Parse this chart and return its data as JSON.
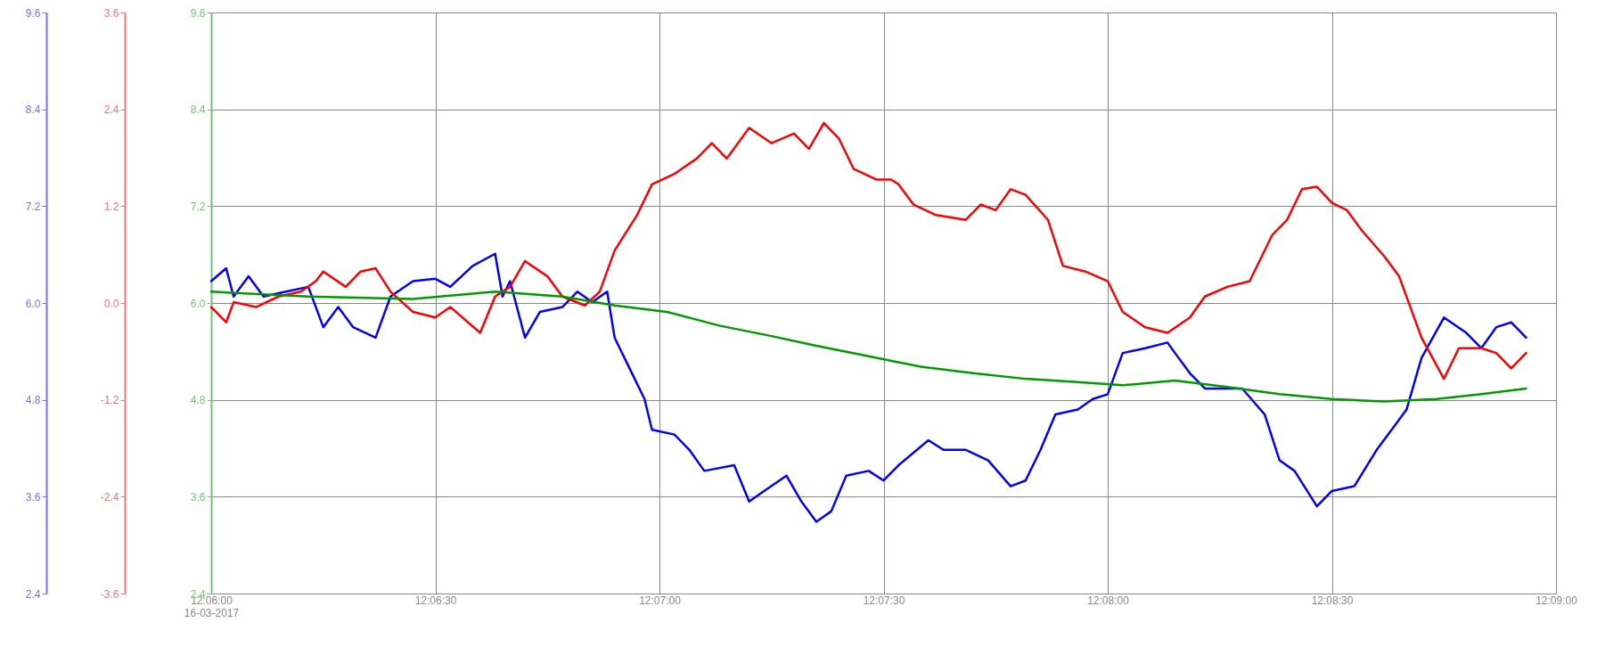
{
  "chart_data": {
    "type": "line",
    "xlim": [
      "2017-03-16T12:06:00",
      "2017-03-16T12:09:00"
    ],
    "xticks": [
      {
        "value": "2017-03-16T12:06:00",
        "label": "12:06:00\n16-03-2017"
      },
      {
        "value": "2017-03-16T12:06:30",
        "label": "12:06:30"
      },
      {
        "value": "2017-03-16T12:07:00",
        "label": "12:07:00"
      },
      {
        "value": "2017-03-16T12:07:30",
        "label": "12:07:30"
      },
      {
        "value": "2017-03-16T12:08:00",
        "label": "12:08:00"
      },
      {
        "value": "2017-03-16T12:08:30",
        "label": "12:08:30"
      },
      {
        "value": "2017-03-16T12:09:00",
        "label": "12:09:00"
      }
    ],
    "ylim": [
      2.4,
      9.6
    ],
    "yticks": [
      2.4,
      3.6,
      4.8,
      {
        "value": 6,
        "label": "6.0"
      },
      7.2,
      8.4,
      9.6
    ],
    "y2lim": [
      -3.6,
      3.6
    ],
    "y2ticks": [
      -3.6,
      -2.4,
      -1.2,
      {
        "value": 0,
        "label": "0.0"
      },
      1.2,
      2.4,
      3.6
    ],
    "y3lim": [
      2.4,
      9.6
    ],
    "y3ticks": [
      2.4,
      3.6,
      4.8,
      {
        "value": 6,
        "label": "6.0"
      },
      7.2,
      8.4,
      9.6
    ],
    "grid": true,
    "line_style": "solid",
    "marker": "none",
    "series": [
      {
        "color": "#0000ff",
        "axis": "y",
        "x": [
          "2017-03-16T12:06:00",
          "2017-03-16T12:06:02",
          "2017-03-16T12:06:03",
          "2017-03-16T12:06:05",
          "2017-03-16T12:06:07",
          "2017-03-16T12:06:10",
          "2017-03-16T12:06:13",
          "2017-03-16T12:06:15",
          "2017-03-16T12:06:17",
          "2017-03-16T12:06:19",
          "2017-03-16T12:06:22",
          "2017-03-16T12:06:24",
          "2017-03-16T12:06:27",
          "2017-03-16T12:06:30",
          "2017-03-16T12:06:32",
          "2017-03-16T12:06:35",
          "2017-03-16T12:06:38",
          "2017-03-16T12:06:39",
          "2017-03-16T12:06:40",
          "2017-03-16T12:06:42",
          "2017-03-16T12:06:44",
          "2017-03-16T12:06:47",
          "2017-03-16T12:06:49",
          "2017-03-16T12:06:51",
          "2017-03-16T12:06:53",
          "2017-03-16T12:06:54",
          "2017-03-16T12:06:56",
          "2017-03-16T12:06:58",
          "2017-03-16T12:06:59",
          "2017-03-16T12:07:02",
          "2017-03-16T12:07:04",
          "2017-03-16T12:07:06",
          "2017-03-16T12:07:10",
          "2017-03-16T12:07:12",
          "2017-03-16T12:07:14",
          "2017-03-16T12:07:17",
          "2017-03-16T12:07:19",
          "2017-03-16T12:07:21",
          "2017-03-16T12:07:23",
          "2017-03-16T12:07:25",
          "2017-03-16T12:07:28",
          "2017-03-16T12:07:30",
          "2017-03-16T12:07:32",
          "2017-03-16T12:07:36",
          "2017-03-16T12:07:38",
          "2017-03-16T12:07:41",
          "2017-03-16T12:07:44",
          "2017-03-16T12:07:47",
          "2017-03-16T12:07:49",
          "2017-03-16T12:07:51",
          "2017-03-16T12:07:53",
          "2017-03-16T12:07:56",
          "2017-03-16T12:07:58",
          "2017-03-16T12:08:00",
          "2017-03-16T12:08:02",
          "2017-03-16T12:08:05",
          "2017-03-16T12:08:08",
          "2017-03-16T12:08:09",
          "2017-03-16T12:08:11",
          "2017-03-16T12:08:13",
          "2017-03-16T12:08:15",
          "2017-03-16T12:08:18",
          "2017-03-16T12:08:21",
          "2017-03-16T12:08:23",
          "2017-03-16T12:08:25",
          "2017-03-16T12:08:28",
          "2017-03-16T12:08:30",
          "2017-03-16T12:08:33",
          "2017-03-16T12:08:36",
          "2017-03-16T12:08:38",
          "2017-03-16T12:08:40",
          "2017-03-16T12:08:42",
          "2017-03-16T12:08:45",
          "2017-03-16T12:08:48",
          "2017-03-16T12:08:50",
          "2017-03-16T12:08:52",
          "2017-03-16T12:08:54",
          "2017-03-16T12:08:56"
        ],
        "values": [
          6.27,
          6.43,
          6.08,
          6.33,
          6.08,
          6.14,
          6.2,
          5.7,
          5.95,
          5.7,
          5.57,
          6.08,
          6.27,
          6.3,
          6.2,
          6.46,
          6.61,
          6.08,
          6.27,
          5.57,
          5.89,
          5.95,
          6.14,
          6.01,
          6.14,
          5.57,
          5.19,
          4.81,
          4.43,
          4.37,
          4.18,
          3.92,
          3.99,
          3.54,
          3.67,
          3.86,
          3.54,
          3.29,
          3.42,
          3.86,
          3.92,
          3.8,
          3.99,
          4.3,
          4.18,
          4.18,
          4.05,
          3.73,
          3.8,
          4.18,
          4.62,
          4.68,
          4.81,
          4.87,
          5.38,
          5.44,
          5.51,
          5.38,
          5.13,
          4.94,
          4.94,
          4.94,
          4.62,
          4.05,
          3.92,
          3.48,
          3.67,
          3.73,
          4.18,
          4.43,
          4.68,
          5.32,
          5.82,
          5.63,
          5.44,
          5.7,
          5.76,
          5.57
        ]
      },
      {
        "color": "#ff0000",
        "axis": "y2",
        "x": [
          "2017-03-16T12:06:00",
          "2017-03-16T12:06:02",
          "2017-03-16T12:06:03",
          "2017-03-16T12:06:06",
          "2017-03-16T12:06:09",
          "2017-03-16T12:06:12",
          "2017-03-16T12:06:14",
          "2017-03-16T12:06:15",
          "2017-03-16T12:06:18",
          "2017-03-16T12:06:20",
          "2017-03-16T12:06:22",
          "2017-03-16T12:06:24",
          "2017-03-16T12:06:27",
          "2017-03-16T12:06:30",
          "2017-03-16T12:06:32",
          "2017-03-16T12:06:36",
          "2017-03-16T12:06:38",
          "2017-03-16T12:06:40",
          "2017-03-16T12:06:42",
          "2017-03-16T12:06:45",
          "2017-03-16T12:06:47",
          "2017-03-16T12:06:50",
          "2017-03-16T12:06:52",
          "2017-03-16T12:06:54",
          "2017-03-16T12:06:57",
          "2017-03-16T12:06:59",
          "2017-03-16T12:07:02",
          "2017-03-16T12:07:05",
          "2017-03-16T12:07:07",
          "2017-03-16T12:07:09",
          "2017-03-16T12:07:12",
          "2017-03-16T12:07:15",
          "2017-03-16T12:07:18",
          "2017-03-16T12:07:20",
          "2017-03-16T12:07:22",
          "2017-03-16T12:07:24",
          "2017-03-16T12:07:26",
          "2017-03-16T12:07:29",
          "2017-03-16T12:07:31",
          "2017-03-16T12:07:32",
          "2017-03-16T12:07:34",
          "2017-03-16T12:07:37",
          "2017-03-16T12:07:41",
          "2017-03-16T12:07:43",
          "2017-03-16T12:07:45",
          "2017-03-16T12:07:47",
          "2017-03-16T12:07:49",
          "2017-03-16T12:07:52",
          "2017-03-16T12:07:54",
          "2017-03-16T12:07:57",
          "2017-03-16T12:08:00",
          "2017-03-16T12:08:02",
          "2017-03-16T12:08:05",
          "2017-03-16T12:08:08",
          "2017-03-16T12:08:11",
          "2017-03-16T12:08:13",
          "2017-03-16T12:08:16",
          "2017-03-16T12:08:19",
          "2017-03-16T12:08:22",
          "2017-03-16T12:08:24",
          "2017-03-16T12:08:26",
          "2017-03-16T12:08:28",
          "2017-03-16T12:08:30",
          "2017-03-16T12:08:32",
          "2017-03-16T12:08:34",
          "2017-03-16T12:08:37",
          "2017-03-16T12:08:39",
          "2017-03-16T12:08:42",
          "2017-03-16T12:08:45",
          "2017-03-16T12:08:47",
          "2017-03-16T12:08:50",
          "2017-03-16T12:08:52",
          "2017-03-16T12:08:54",
          "2017-03-16T12:08:56"
        ],
        "values": [
          -0.05,
          -0.24,
          0.01,
          -0.05,
          0.08,
          0.14,
          0.27,
          0.39,
          0.2,
          0.39,
          0.43,
          0.14,
          -0.11,
          -0.18,
          -0.05,
          -0.37,
          0.08,
          0.2,
          0.52,
          0.33,
          0.08,
          -0.03,
          0.14,
          0.65,
          1.09,
          1.47,
          1.6,
          1.79,
          1.98,
          1.79,
          2.17,
          1.98,
          2.1,
          1.91,
          2.23,
          2.04,
          1.66,
          1.53,
          1.53,
          1.47,
          1.22,
          1.09,
          1.03,
          1.22,
          1.15,
          1.41,
          1.34,
          1.03,
          0.46,
          0.39,
          0.27,
          -0.11,
          -0.3,
          -0.37,
          -0.18,
          0.08,
          0.2,
          0.27,
          0.84,
          1.03,
          1.41,
          1.44,
          1.24,
          1.15,
          0.9,
          0.58,
          0.33,
          -0.43,
          -0.94,
          -0.56,
          -0.56,
          -0.62,
          -0.81,
          -0.62
        ]
      },
      {
        "color": "#009900",
        "axis": "y3",
        "x": [
          "2017-03-16T12:06:00",
          "2017-03-16T12:06:13",
          "2017-03-16T12:06:27",
          "2017-03-16T12:06:38",
          "2017-03-16T12:06:47",
          "2017-03-16T12:06:54",
          "2017-03-16T12:07:01",
          "2017-03-16T12:07:08",
          "2017-03-16T12:07:15",
          "2017-03-16T12:07:21",
          "2017-03-16T12:07:28",
          "2017-03-16T12:07:35",
          "2017-03-16T12:07:42",
          "2017-03-16T12:07:49",
          "2017-03-16T12:07:56",
          "2017-03-16T12:08:02",
          "2017-03-16T12:08:09",
          "2017-03-16T12:08:16",
          "2017-03-16T12:08:23",
          "2017-03-16T12:08:30",
          "2017-03-16T12:08:37",
          "2017-03-16T12:08:44",
          "2017-03-16T12:08:50",
          "2017-03-16T12:08:56"
        ],
        "values": [
          6.14,
          6.08,
          6.05,
          6.14,
          6.08,
          5.97,
          5.89,
          5.72,
          5.59,
          5.47,
          5.34,
          5.21,
          5.13,
          5.06,
          5.02,
          4.98,
          5.04,
          4.96,
          4.87,
          4.81,
          4.78,
          4.81,
          4.87,
          4.94
        ]
      }
    ]
  }
}
